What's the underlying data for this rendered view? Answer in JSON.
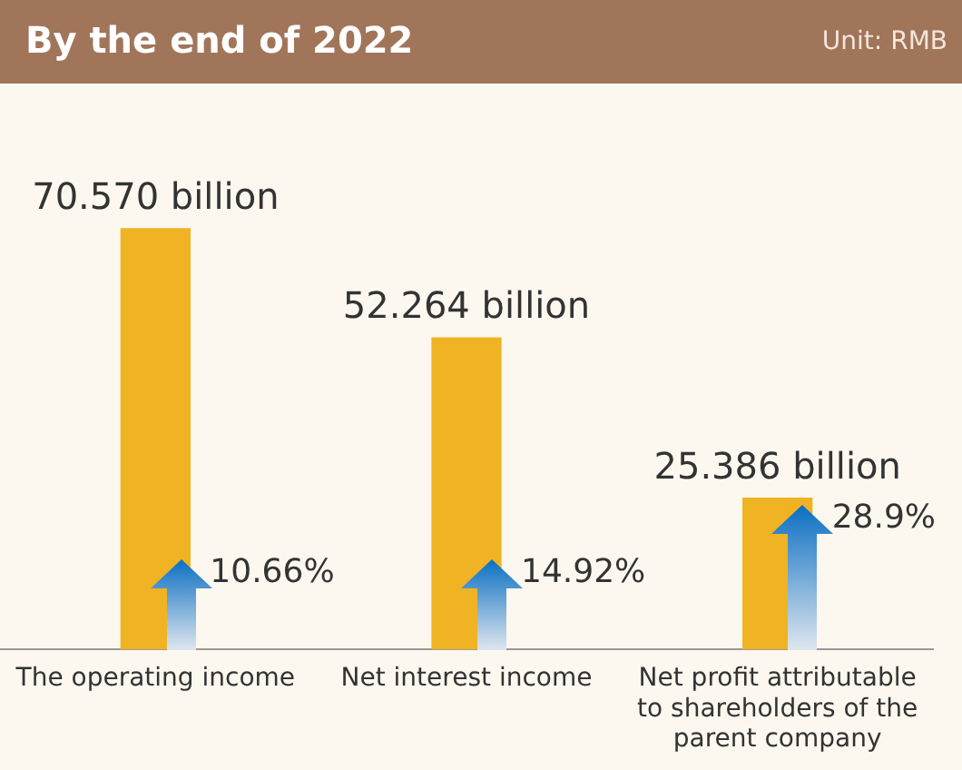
{
  "chart_data": {
    "type": "bar",
    "title": "By the end of 2022",
    "subtitle": "Unit: RMB",
    "categories": [
      "The operating income",
      "Net interest income",
      "Net profit attributable to shareholders of the parent company"
    ],
    "values": [
      70.57,
      52.264,
      25.386
    ],
    "color": "#f0b323",
    "value_labels": [
      "70.570 billion",
      "52.264 billion",
      "25.386 billion"
    ],
    "annotations": [
      "10.66%",
      "14.92%",
      "28.9%"
    ],
    "grid": false,
    "legend": false,
    "tick_labels": "x"
  }
}
